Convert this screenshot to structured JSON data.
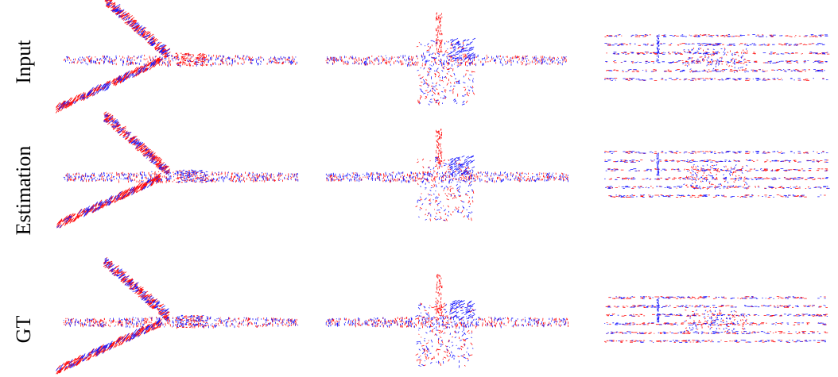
{
  "row_labels": [
    "Input",
    "Estimation",
    "GT"
  ]
}
